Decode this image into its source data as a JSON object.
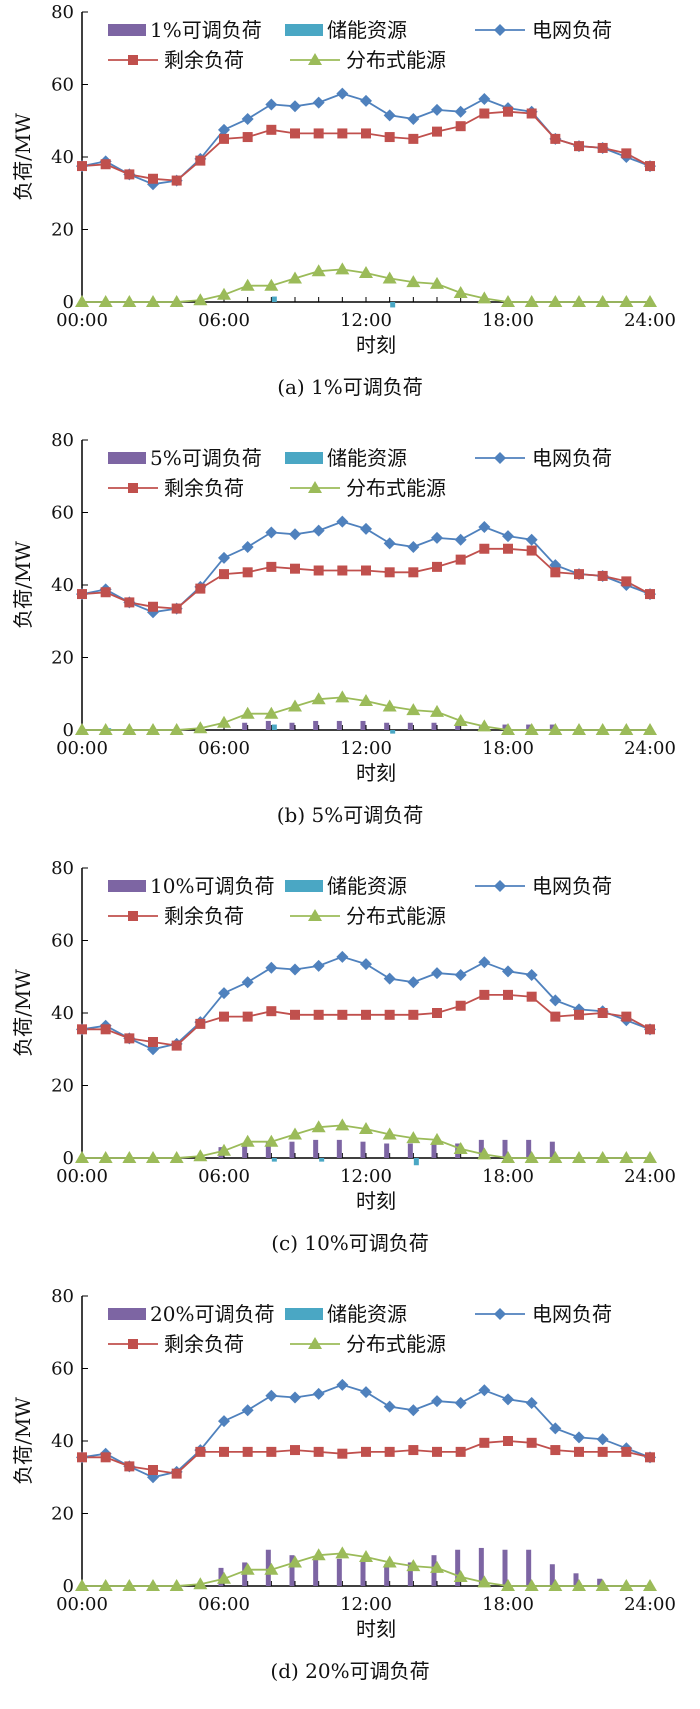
{
  "shared": {
    "hours": [
      0,
      1,
      2,
      3,
      4,
      5,
      6,
      7,
      8,
      9,
      10,
      11,
      12,
      13,
      14,
      15,
      16,
      17,
      18,
      19,
      20,
      21,
      22,
      23,
      24
    ],
    "x_ticks": [
      "00:00",
      "06:00",
      "12:00",
      "18:00",
      "24:00"
    ],
    "x_label": "时刻",
    "y_label": "负荷/MW",
    "y_ticks": [
      "0",
      "20",
      "40",
      "60",
      "80"
    ],
    "colors": {
      "adjustable": "#7d65a3",
      "storage": "#4aa7c4",
      "grid_load": "#4f81bd",
      "residual_load": "#c0504d",
      "distributed": "#9bbb59"
    },
    "legend_labels": {
      "storage": "储能资源",
      "grid_load": "电网负荷",
      "residual_load": "剩余负荷",
      "distributed": "分布式能源"
    }
  },
  "chart_data": [
    {
      "type": "bar+line",
      "caption": "(a) 1%可调负荷",
      "adjustable_label": "1%可调负荷",
      "ylim": [
        0,
        80
      ],
      "xlim": [
        0,
        24
      ],
      "grid": false,
      "series": {
        "grid_load": [
          37.5,
          38.8,
          35.2,
          32.5,
          33.5,
          39.5,
          47.5,
          50.5,
          54.5,
          54.0,
          55.0,
          57.5,
          55.5,
          51.5,
          50.5,
          53.0,
          52.5,
          56.0,
          53.5,
          52.5,
          45.0,
          43.0,
          42.5,
          40.0,
          37.5
        ],
        "residual_load": [
          37.5,
          38.0,
          35.2,
          34.0,
          33.5,
          39.0,
          45.0,
          45.5,
          47.5,
          46.5,
          46.5,
          46.5,
          46.5,
          45.5,
          45.0,
          47.0,
          48.5,
          52.0,
          52.5,
          52.0,
          45.0,
          43.0,
          42.5,
          41.0,
          37.5
        ],
        "distributed": [
          0,
          0,
          0,
          0,
          0,
          0.5,
          2.0,
          4.5,
          4.5,
          6.5,
          8.5,
          9.0,
          8.0,
          6.5,
          5.5,
          5.0,
          2.5,
          1.0,
          0,
          0,
          0,
          0,
          0,
          0,
          0
        ],
        "adjustable": [
          0,
          0,
          0,
          0,
          0,
          0,
          0,
          0,
          0,
          0,
          0,
          0,
          0,
          0,
          0,
          0,
          0,
          0,
          0,
          0,
          0,
          0,
          0,
          0,
          0
        ],
        "storage": [
          0,
          0,
          0,
          0,
          0,
          0,
          0,
          0,
          1.5,
          0,
          0,
          0,
          0,
          -1.5,
          0,
          0,
          0,
          0,
          0,
          0,
          0,
          0,
          0,
          0,
          0
        ]
      }
    },
    {
      "type": "bar+line",
      "caption": "(b) 5%可调负荷",
      "adjustable_label": "5%可调负荷",
      "ylim": [
        0,
        80
      ],
      "xlim": [
        0,
        24
      ],
      "grid": false,
      "series": {
        "grid_load": [
          37.5,
          38.8,
          35.2,
          32.5,
          33.5,
          39.5,
          47.5,
          50.5,
          54.5,
          54.0,
          55.0,
          57.5,
          55.5,
          51.5,
          50.5,
          53.0,
          52.5,
          56.0,
          53.5,
          52.5,
          45.5,
          43.0,
          42.5,
          40.0,
          37.5
        ],
        "residual_load": [
          37.5,
          38.0,
          35.2,
          34.0,
          33.5,
          39.0,
          43.0,
          43.5,
          45.0,
          44.5,
          44.0,
          44.0,
          44.0,
          43.5,
          43.5,
          45.0,
          47.0,
          50.0,
          50.0,
          49.5,
          43.5,
          43.0,
          42.5,
          41.0,
          37.5
        ],
        "distributed": [
          0,
          0,
          0,
          0,
          0,
          0.5,
          2.0,
          4.5,
          4.5,
          6.5,
          8.5,
          9.0,
          8.0,
          6.5,
          5.5,
          5.0,
          2.5,
          1.0,
          0,
          0,
          0,
          0,
          0,
          0,
          0
        ],
        "adjustable": [
          0,
          0,
          0,
          0,
          0,
          0,
          0,
          2.0,
          2.5,
          2.0,
          2.5,
          2.5,
          2.5,
          2.0,
          2.0,
          2.0,
          1.5,
          1.0,
          1.5,
          1.5,
          1.5,
          0,
          0,
          0,
          0
        ],
        "storage": [
          0,
          0.5,
          0,
          0,
          0,
          0,
          0,
          0,
          1.5,
          0,
          0,
          0,
          0,
          -1.0,
          0,
          0,
          0,
          0,
          0,
          0,
          0,
          0,
          0,
          0,
          0
        ]
      }
    },
    {
      "type": "bar+line",
      "caption": "(c) 10%可调负荷",
      "adjustable_label": "10%可调负荷",
      "ylim": [
        0,
        80
      ],
      "xlim": [
        0,
        24
      ],
      "grid": false,
      "series": {
        "grid_load": [
          35.5,
          36.5,
          33.0,
          30.0,
          31.5,
          37.5,
          45.5,
          48.5,
          52.5,
          52.0,
          53.0,
          55.5,
          53.5,
          49.5,
          48.5,
          51.0,
          50.5,
          54.0,
          51.5,
          50.5,
          43.5,
          41.0,
          40.5,
          38.0,
          35.5
        ],
        "residual_load": [
          35.5,
          35.5,
          33.0,
          32.0,
          31.0,
          37.0,
          39.0,
          39.0,
          40.5,
          39.5,
          39.5,
          39.5,
          39.5,
          39.5,
          39.5,
          40.0,
          42.0,
          45.0,
          45.0,
          44.5,
          39.0,
          39.5,
          40.0,
          39.0,
          35.5
        ],
        "distributed": [
          0,
          0,
          0,
          0,
          0,
          0.5,
          2.0,
          4.5,
          4.5,
          6.5,
          8.5,
          9.0,
          8.0,
          6.5,
          5.5,
          5.0,
          2.5,
          1.0,
          0,
          0,
          0,
          0,
          0,
          0,
          0
        ],
        "adjustable": [
          0,
          0,
          0,
          0,
          0,
          0,
          3.0,
          4.0,
          4.5,
          4.5,
          5.0,
          5.0,
          4.5,
          4.0,
          4.0,
          4.0,
          4.0,
          5.0,
          5.0,
          5.0,
          4.5,
          0,
          0,
          0,
          0
        ],
        "storage": [
          0,
          0,
          0,
          0,
          0,
          0,
          0,
          0,
          -1.0,
          0,
          -1.0,
          0,
          0,
          0,
          -2.0,
          0,
          0,
          0,
          0,
          0,
          0,
          0,
          0,
          0,
          0
        ]
      }
    },
    {
      "type": "bar+line",
      "caption": "(d) 20%可调负荷",
      "adjustable_label": "20%可调负荷",
      "ylim": [
        0,
        80
      ],
      "xlim": [
        0,
        24
      ],
      "grid": false,
      "series": {
        "grid_load": [
          35.5,
          36.5,
          33.0,
          30.0,
          31.5,
          37.5,
          45.5,
          48.5,
          52.5,
          52.0,
          53.0,
          55.5,
          53.5,
          49.5,
          48.5,
          51.0,
          50.5,
          54.0,
          51.5,
          50.5,
          43.5,
          41.0,
          40.5,
          38.0,
          35.5
        ],
        "residual_load": [
          35.5,
          35.5,
          33.0,
          32.0,
          31.0,
          37.0,
          37.0,
          37.0,
          37.0,
          37.5,
          37.0,
          36.5,
          37.0,
          37.0,
          37.5,
          37.0,
          37.0,
          39.5,
          40.0,
          39.5,
          37.5,
          37.0,
          37.0,
          37.0,
          35.5
        ],
        "distributed": [
          0,
          0,
          0,
          0,
          0,
          0.5,
          2.0,
          4.5,
          4.5,
          6.5,
          8.5,
          9.0,
          8.0,
          6.5,
          5.5,
          5.0,
          2.5,
          1.0,
          0,
          0,
          0,
          0,
          0,
          0,
          0
        ],
        "adjustable": [
          0,
          0,
          0,
          0,
          0,
          0,
          5.0,
          6.5,
          10.0,
          8.5,
          7.5,
          7.5,
          7.0,
          6.0,
          6.5,
          8.5,
          10.0,
          10.5,
          10.0,
          10.0,
          6.0,
          3.5,
          2.0,
          0,
          0
        ],
        "storage": [
          0,
          0,
          0,
          0,
          0,
          0,
          0,
          0,
          0,
          0,
          0,
          0,
          0,
          0,
          0,
          0,
          0,
          0,
          0,
          0,
          0,
          0,
          0,
          0,
          0
        ]
      }
    }
  ]
}
